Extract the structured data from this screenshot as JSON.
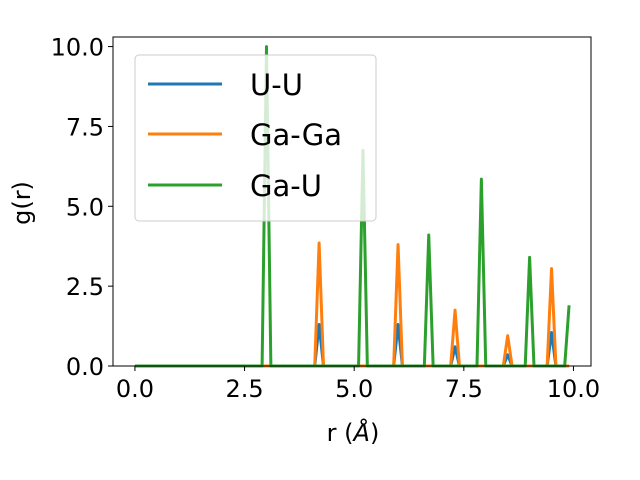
{
  "chart_data": {
    "type": "line",
    "title": "",
    "xlabel_main": "r (",
    "xlabel_unit": "Å",
    "xlabel_close": ")",
    "ylabel": "g(r)",
    "xlim": [
      -0.5,
      10.4
    ],
    "ylim": [
      0,
      10.3
    ],
    "xticks": [
      0.0,
      2.5,
      5.0,
      7.5,
      10.0
    ],
    "xtick_labels": [
      "0.0",
      "2.5",
      "5.0",
      "7.5",
      "10.0"
    ],
    "yticks": [
      0.0,
      2.5,
      5.0,
      7.5,
      10.0
    ],
    "ytick_labels": [
      "0.0",
      "2.5",
      "5.0",
      "7.5",
      "10.0"
    ],
    "grid": false,
    "legend_position": "upper-left",
    "series": [
      {
        "name": "U-U",
        "color": "#1f77b4",
        "x": [
          0.0,
          4.1,
          4.2,
          4.3,
          5.9,
          6.0,
          6.1,
          7.2,
          7.3,
          7.4,
          8.4,
          8.5,
          8.6,
          9.4,
          9.5,
          9.6,
          9.9
        ],
        "y": [
          0.0,
          0.0,
          1.3,
          0.0,
          0.0,
          1.3,
          0.0,
          0.0,
          0.6,
          0.0,
          0.0,
          0.35,
          0.0,
          0.0,
          1.05,
          0.0,
          0.0
        ]
      },
      {
        "name": "Ga-Ga",
        "color": "#ff7f0e",
        "x": [
          0.0,
          4.1,
          4.2,
          4.3,
          5.9,
          6.0,
          6.1,
          7.2,
          7.3,
          7.4,
          8.4,
          8.5,
          8.6,
          9.4,
          9.5,
          9.6,
          9.9
        ],
        "y": [
          0.0,
          0.0,
          3.85,
          0.0,
          0.0,
          3.8,
          0.0,
          0.0,
          1.75,
          0.0,
          0.0,
          0.95,
          0.0,
          0.0,
          3.05,
          0.0,
          0.0
        ]
      },
      {
        "name": "Ga-U",
        "color": "#2ca02c",
        "x": [
          0.0,
          2.9,
          3.0,
          3.1,
          5.1,
          5.2,
          5.3,
          6.6,
          6.7,
          6.8,
          7.8,
          7.9,
          8.0,
          8.9,
          9.0,
          9.1,
          9.8,
          9.9
        ],
        "y": [
          0.0,
          0.0,
          10.0,
          0.0,
          0.0,
          6.75,
          0.0,
          0.0,
          4.1,
          0.0,
          0.0,
          5.85,
          0.0,
          0.0,
          3.4,
          0.0,
          0.0,
          1.9
        ]
      }
    ]
  }
}
